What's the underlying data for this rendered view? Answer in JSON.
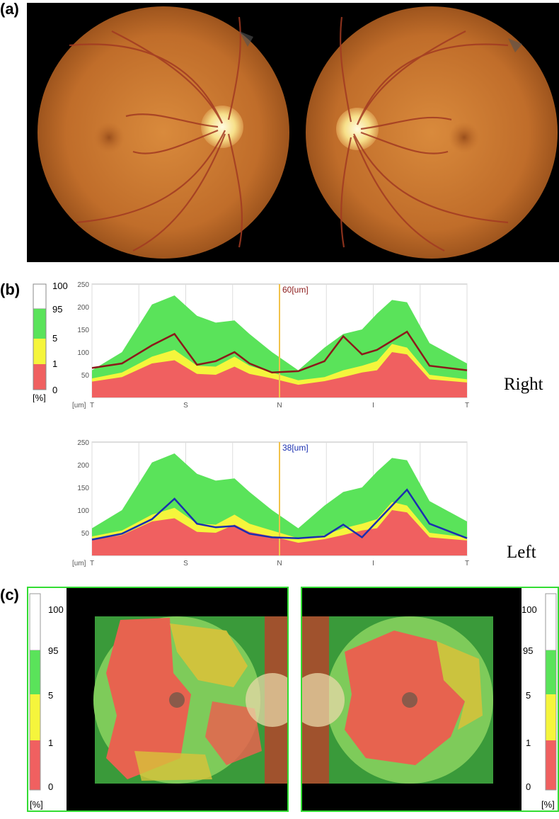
{
  "panels": {
    "a": {
      "label": "(a)"
    },
    "b": {
      "label": "(b)",
      "right_label": "Right",
      "left_label": "Left",
      "right_thickness_label": "60[um]",
      "left_thickness_label": "38[um]",
      "right_scale": {
        "ticks": [
          "100",
          "95",
          "5",
          "1",
          "0"
        ],
        "unit": "[%]"
      }
    },
    "c": {
      "label": "(c)",
      "scale_ticks": [
        "100",
        "95",
        "5",
        "1",
        "0"
      ],
      "scale_unit": "[%]"
    }
  },
  "colors": {
    "normal_green": "#5ae35a",
    "borderline_yellow": "#f5f53c",
    "abnormal_red": "#f06060",
    "right_profile": "#8b1a1a",
    "left_profile": "#1a2fb0",
    "marker": "#f2c24a"
  },
  "chart_data": [
    {
      "type": "area",
      "title": "Right",
      "ylabel": "[um]",
      "ylim": [
        0,
        250
      ],
      "yticks": [
        50,
        100,
        150,
        200,
        250
      ],
      "x_ticks": [
        "T",
        "S",
        "N",
        "I",
        "T"
      ],
      "marker_label": "60[um]",
      "x": [
        0,
        8,
        16,
        22,
        28,
        33,
        38,
        42,
        48,
        55,
        62,
        67,
        72,
        76,
        80,
        84,
        90,
        100
      ],
      "series": [
        {
          "name": "95",
          "values": [
            60,
            100,
            205,
            225,
            180,
            165,
            170,
            140,
            100,
            60,
            110,
            140,
            150,
            185,
            215,
            210,
            120,
            75
          ]
        },
        {
          "name": "5",
          "values": [
            42,
            55,
            90,
            105,
            70,
            68,
            90,
            70,
            55,
            38,
            45,
            60,
            70,
            80,
            118,
            110,
            50,
            40
          ]
        },
        {
          "name": "1",
          "values": [
            35,
            45,
            75,
            82,
            52,
            50,
            68,
            52,
            42,
            28,
            36,
            45,
            55,
            60,
            100,
            95,
            40,
            33
          ]
        },
        {
          "name": "Right",
          "values": [
            65,
            75,
            115,
            140,
            72,
            80,
            100,
            75,
            55,
            58,
            80,
            135,
            95,
            105,
            125,
            145,
            70,
            60
          ]
        }
      ]
    },
    {
      "type": "area",
      "title": "Left",
      "ylabel": "[um]",
      "ylim": [
        0,
        250
      ],
      "yticks": [
        50,
        100,
        150,
        200,
        250
      ],
      "x_ticks": [
        "T",
        "S",
        "N",
        "I",
        "T"
      ],
      "marker_label": "38[um]",
      "x": [
        0,
        8,
        16,
        22,
        28,
        33,
        38,
        42,
        48,
        55,
        62,
        67,
        72,
        76,
        80,
        84,
        90,
        100
      ],
      "series": [
        {
          "name": "95",
          "values": [
            60,
            100,
            205,
            225,
            180,
            165,
            170,
            140,
            100,
            60,
            110,
            140,
            150,
            185,
            215,
            210,
            120,
            75
          ]
        },
        {
          "name": "5",
          "values": [
            42,
            55,
            90,
            105,
            70,
            68,
            90,
            70,
            55,
            38,
            45,
            60,
            70,
            80,
            118,
            110,
            50,
            40
          ]
        },
        {
          "name": "1",
          "values": [
            35,
            45,
            75,
            82,
            52,
            50,
            68,
            52,
            42,
            28,
            36,
            45,
            55,
            60,
            100,
            95,
            40,
            33
          ]
        },
        {
          "name": "Left",
          "values": [
            35,
            48,
            80,
            125,
            70,
            62,
            65,
            48,
            40,
            38,
            42,
            68,
            40,
            75,
            110,
            145,
            70,
            38
          ]
        }
      ]
    }
  ]
}
